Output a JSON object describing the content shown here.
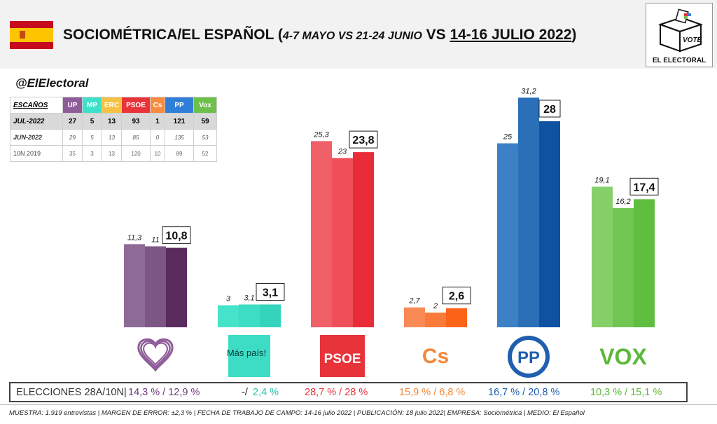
{
  "header": {
    "title_main": "SOCIOMÉTRICA/EL ESPAÑOL",
    "title_periods": "4-7 MAYO VS 21-24 JUNIO",
    "title_vs": " VS ",
    "title_date": "14-16 JULIO 2022",
    "logo_vote": "VOTE",
    "logo_name": "EL ELECTORAL",
    "handle": "@ElElectoral",
    "colors": {
      "flag_red": "#c60b1e",
      "flag_yellow": "#ffc400"
    }
  },
  "seats_table": {
    "header_label": "ESCAÑOS",
    "parties": [
      {
        "label": "UP",
        "color": "#8e5c98"
      },
      {
        "label": "MP",
        "color": "#3de0c8"
      },
      {
        "label": "ERC",
        "color": "#f6c144"
      },
      {
        "label": "PSOE",
        "color": "#e8333b"
      },
      {
        "label": "Cs",
        "color": "#f88a3e"
      },
      {
        "label": "PP",
        "color": "#2f7ed8"
      },
      {
        "label": "Vox",
        "color": "#6dc04a"
      }
    ],
    "rows": [
      {
        "label": "JUL-2022",
        "values": [
          "27",
          "5",
          "13",
          "93",
          "1",
          "121",
          "59"
        ]
      },
      {
        "label": "JUN-2022",
        "values": [
          "29",
          "5",
          "13",
          "85",
          "0",
          "135",
          "53"
        ]
      },
      {
        "label": "10N 2019",
        "values": [
          "35",
          "3",
          "13",
          "120",
          "10",
          "89",
          "52"
        ]
      }
    ]
  },
  "chart_data": {
    "type": "bar",
    "categories": [
      "UP",
      "Más País",
      "PSOE",
      "Cs",
      "PP",
      "VOX"
    ],
    "series": [
      {
        "values": [
          11.3,
          3,
          25.3,
          2.7,
          25,
          19.1
        ]
      },
      {
        "values": [
          11,
          3.1,
          23,
          2,
          31.2,
          16.2
        ]
      },
      {
        "values": [
          10.8,
          3.1,
          23.8,
          2.6,
          28,
          17.4
        ]
      }
    ],
    "labels": [
      [
        "11,3",
        "11",
        "10,8"
      ],
      [
        "3",
        "3,1",
        "3,1"
      ],
      [
        "25,3",
        "23",
        "23,8"
      ],
      [
        "2,7",
        "2",
        "2,6"
      ],
      [
        "25",
        "31,2",
        "28"
      ],
      [
        "19,1",
        "16,2",
        "17,4"
      ]
    ],
    "colors": [
      [
        "#8e6a97",
        "#7d5684",
        "#5a2c5e"
      ],
      [
        "#46e3cb",
        "#3ddcc4",
        "#34d3bb"
      ],
      [
        "#ef6068",
        "#ee4f58",
        "#ea2c38"
      ],
      [
        "#f98a56",
        "#fa7a3a",
        "#fb6319"
      ],
      [
        "#3c80c6",
        "#2a6fb8",
        "#0f52a2"
      ],
      [
        "#85d068",
        "#70c653",
        "#5fbd3f"
      ]
    ],
    "logos": [
      "heart",
      "Más país!",
      "PSOE",
      "Cs",
      "PP",
      "VOX"
    ],
    "ylim": [
      0,
      32
    ]
  },
  "results": {
    "label": "ELECCIONES 28A/10N",
    "items": [
      {
        "text": "14,3 % / 12,9 %",
        "color": "#6d3b7d"
      },
      {
        "text": "-/",
        "color": "#222222"
      },
      {
        "text": "2,4 %",
        "color": "#20c4b0"
      },
      {
        "text": "28,7  % / 28 %",
        "color": "#e8333b"
      },
      {
        "text": "15,9 % / 6,8 %",
        "color": "#f3883c"
      },
      {
        "text": "16,7 % / 20,8 %",
        "color": "#1f5fb0"
      },
      {
        "text": "10,3 % / 15,1 %",
        "color": "#5cb83a"
      }
    ]
  },
  "footnote": "MUESTRA: 1.919 entrevistas | MARGEN DE ERROR: ±2,3 % | FECHA DE TRABAJO DE CAMPO: 14-16 julio 2022 |  PUBLICACIÓN: 18 julio 2022| EMPRESA: Sociométrica | MEDIO: El Español"
}
